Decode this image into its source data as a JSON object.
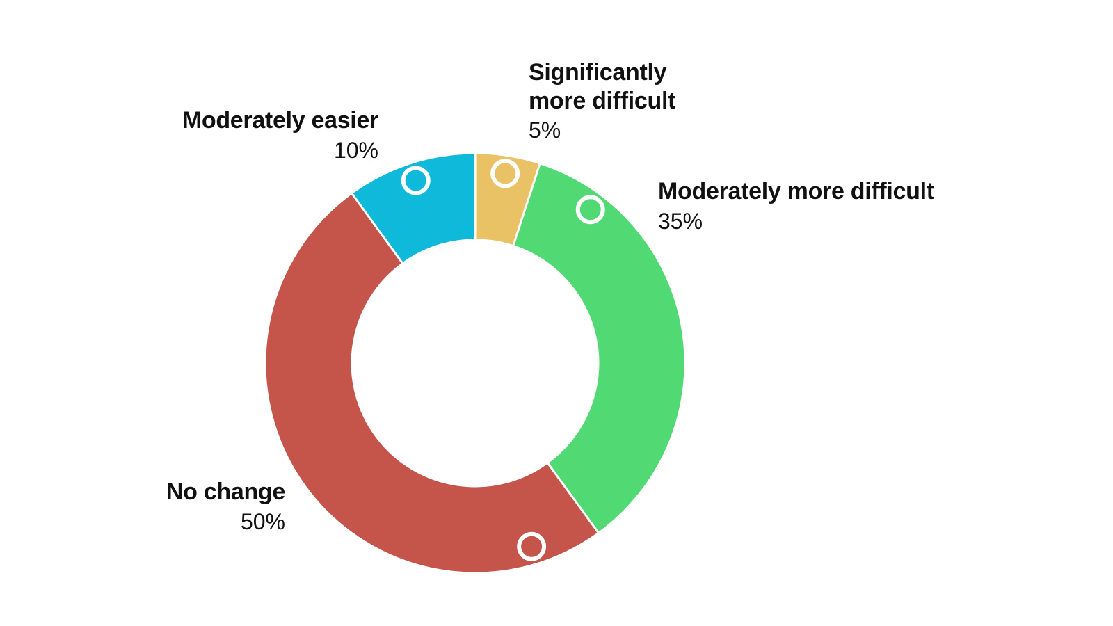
{
  "chart_data": {
    "type": "pie",
    "variant": "donut",
    "slices": [
      {
        "label": "Significantly\nmore difficult",
        "value": 5,
        "display": "5%",
        "color": "#EAC266"
      },
      {
        "label": "Moderately more difficult",
        "value": 35,
        "display": "35%",
        "color": "#51D973"
      },
      {
        "label": "No change",
        "value": 50,
        "display": "50%",
        "color": "#C5544A"
      },
      {
        "label": "Moderately easier",
        "value": 10,
        "display": "10%",
        "color": "#0FB9DA"
      }
    ],
    "title": "",
    "legend": "none"
  }
}
